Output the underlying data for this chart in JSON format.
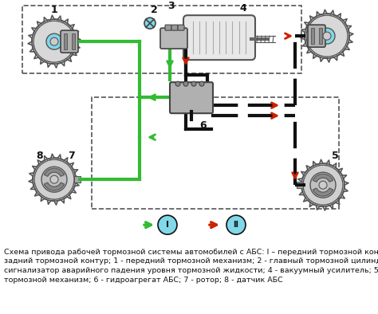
{
  "bg_color": "#80d8e8",
  "white_bg": "#ffffff",
  "caption": "Схема привода рабочей тормозной системы автомобилей с АБС: I – передний тормозной контур; II -\nзадний тормозной контур; 1 - передний тормозной механизм; 2 - главный тормозной цилиндр; 3 -\nсигнализатор аварийного падения уровня тормозной жидкости; 4 - вакуумный усилитель; 5 - задний\nтормозной механизм; 6 - гидроагрегат АБС; 7 - ротор; 8 - датчик АБС",
  "caption_fontsize": 6.8,
  "green": "#33bb33",
  "red": "#cc2200",
  "black": "#111111",
  "gray_line": "#555555",
  "light_gray": "#cccccc",
  "mid_gray": "#aaaaaa",
  "dark_gray": "#888888",
  "figsize": [
    4.74,
    3.94
  ],
  "dpi": 100
}
